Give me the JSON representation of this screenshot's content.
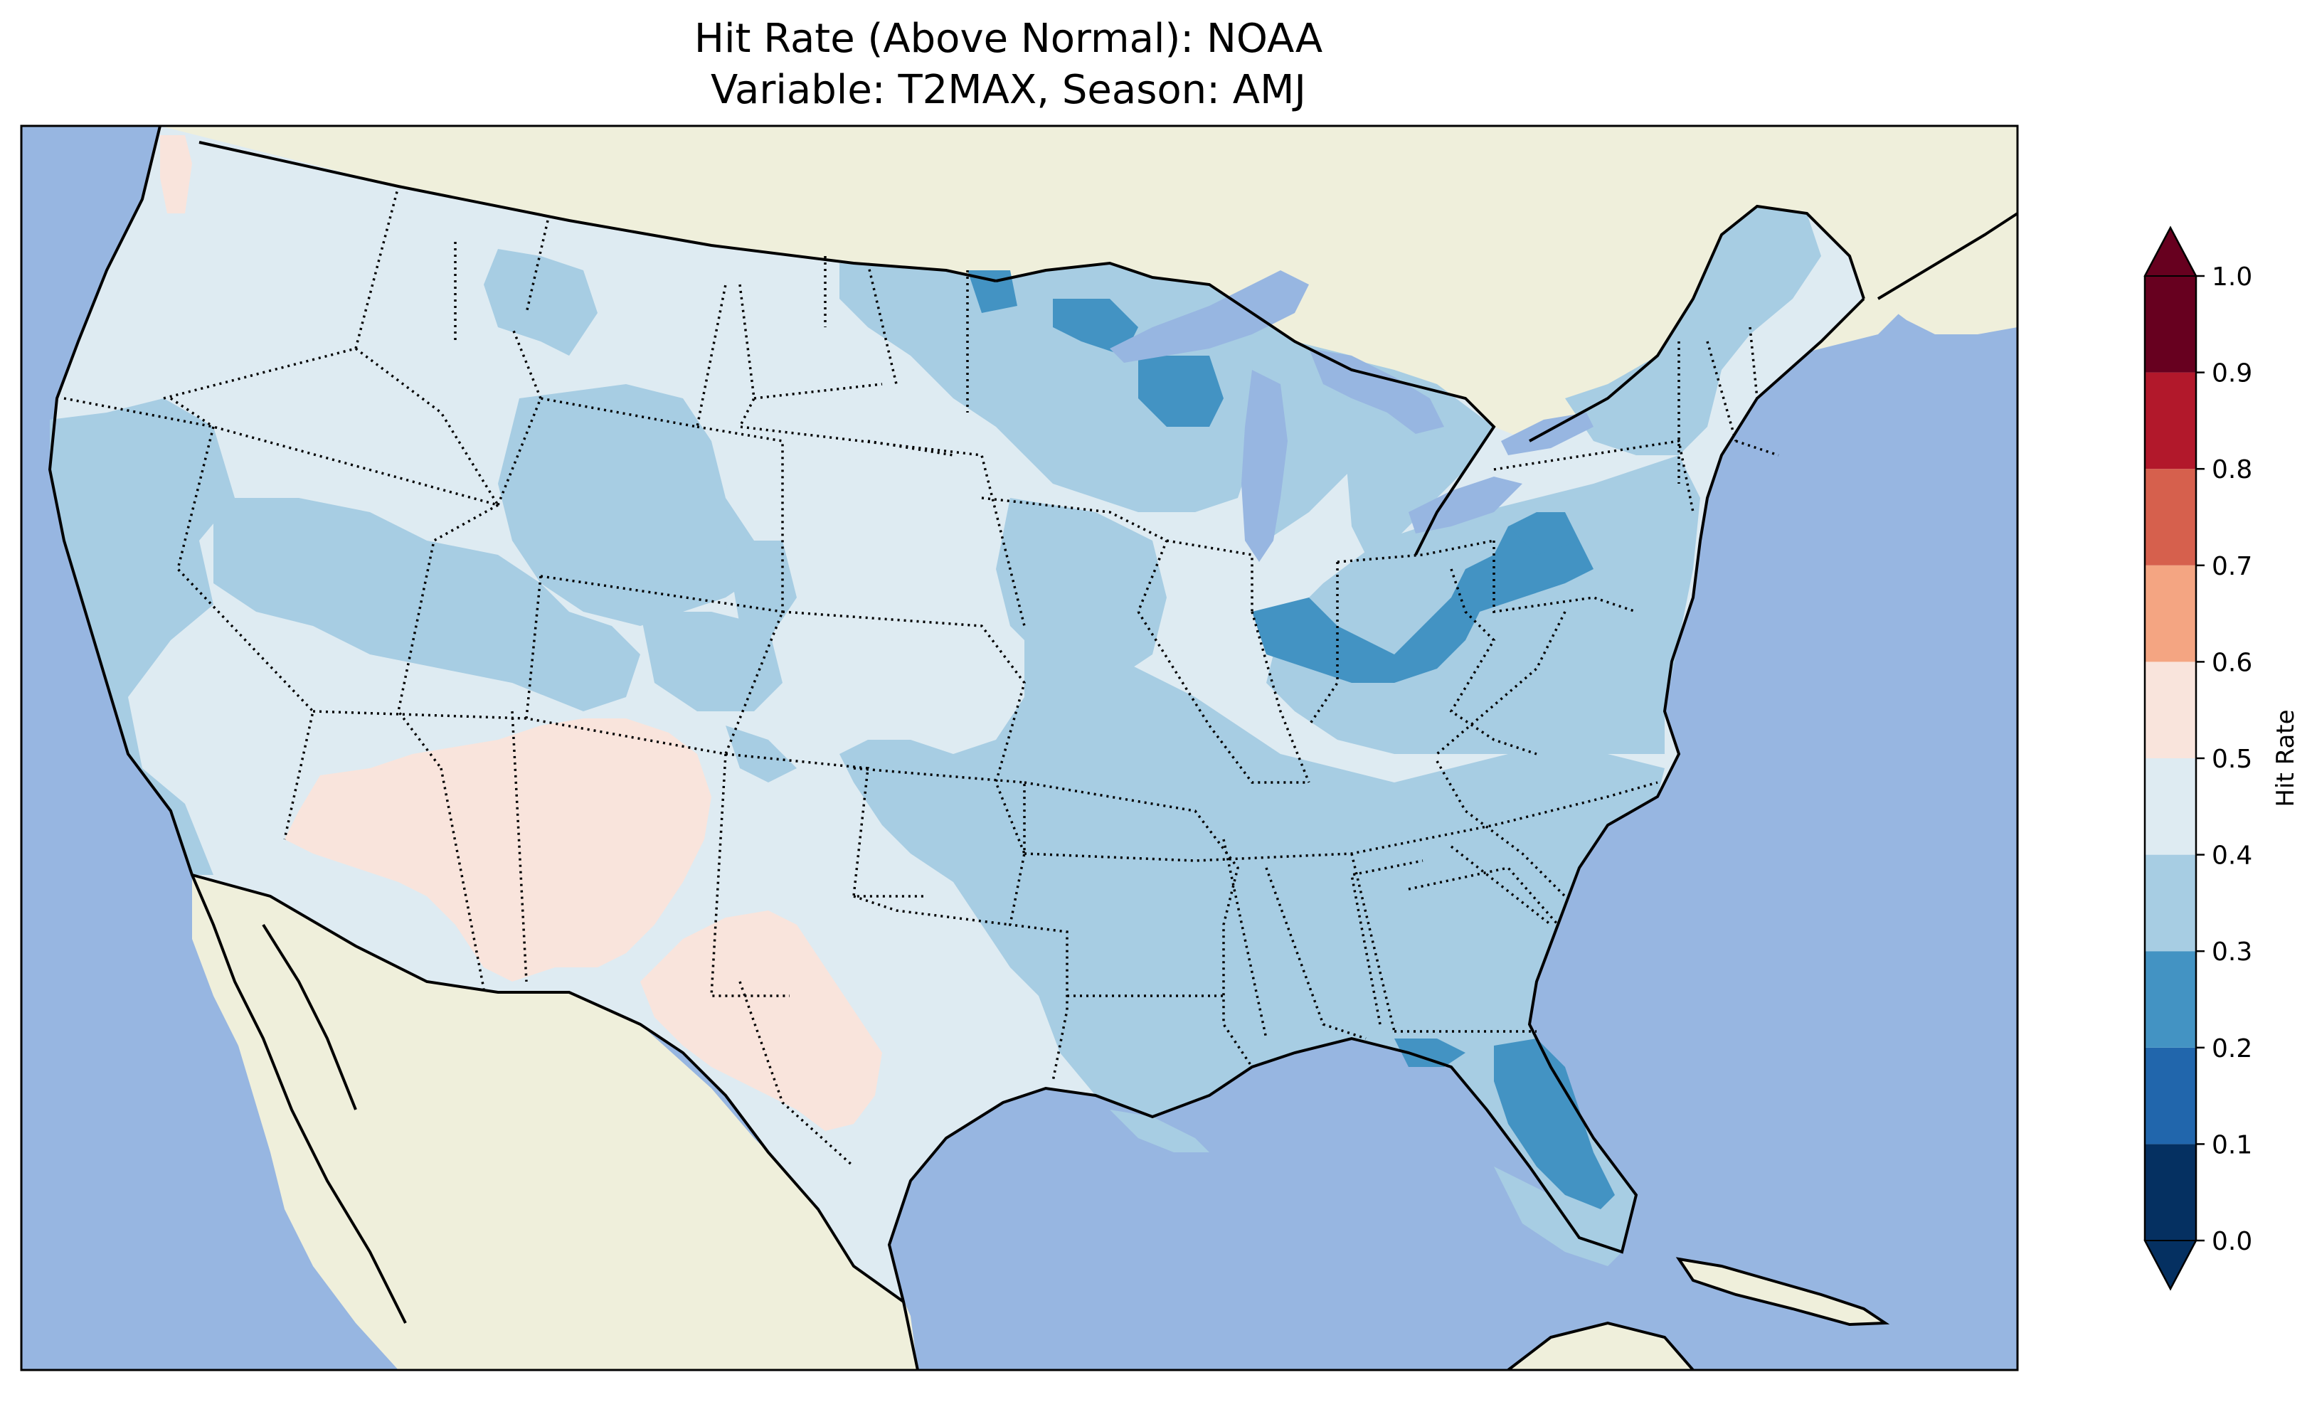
{
  "figure": {
    "title_line1": "Hit Rate (Above Normal): NOAA",
    "title_line2": "Variable: T2MAX, Season: AMJ"
  },
  "colorbar": {
    "label": "Hit Rate",
    "ticks": [
      "0.0",
      "0.1",
      "0.2",
      "0.3",
      "0.4",
      "0.5",
      "0.6",
      "0.7",
      "0.8",
      "0.9",
      "1.0"
    ],
    "bins": [
      {
        "min": 0.0,
        "max": 0.1,
        "color": "#053061"
      },
      {
        "min": 0.1,
        "max": 0.2,
        "color": "#2166ac"
      },
      {
        "min": 0.2,
        "max": 0.3,
        "color": "#4393c3"
      },
      {
        "min": 0.3,
        "max": 0.4,
        "color": "#a7cde3"
      },
      {
        "min": 0.4,
        "max": 0.5,
        "color": "#deebf2"
      },
      {
        "min": 0.5,
        "max": 0.6,
        "color": "#f9e4dc"
      },
      {
        "min": 0.6,
        "max": 0.7,
        "color": "#f4a582"
      },
      {
        "min": 0.7,
        "max": 0.8,
        "color": "#d6604d"
      },
      {
        "min": 0.8,
        "max": 0.9,
        "color": "#b2182b"
      },
      {
        "min": 0.9,
        "max": 1.0,
        "color": "#67001f"
      }
    ],
    "under_color": "#053061",
    "over_color": "#67001f"
  },
  "map_colors": {
    "ocean": "#97b6e1",
    "land": "#efefdb"
  }
}
